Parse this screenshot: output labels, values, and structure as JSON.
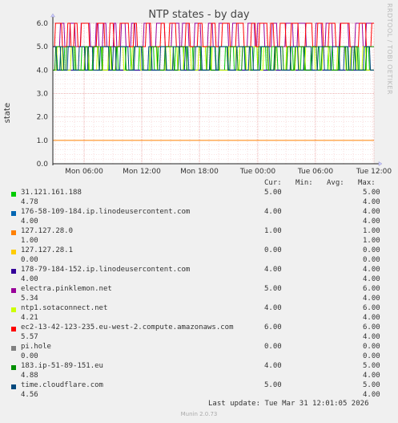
{
  "chart_data": {
    "type": "line",
    "title": "NTP states - by day",
    "ylabel": "state",
    "ylim": [
      0,
      6
    ],
    "y_ticks": [
      "0.0",
      "1.0",
      "2.0",
      "3.0",
      "4.0",
      "5.0",
      "6.0"
    ],
    "x_ticks": [
      "Mon 06:00",
      "Mon 12:00",
      "Mon 18:00",
      "Tue 00:00",
      "Tue 06:00",
      "Tue 12:00"
    ],
    "grid": true,
    "legend_columns": [
      "Cur:",
      "Min:",
      "Avg:",
      "Max:"
    ],
    "series": [
      {
        "name": "31.121.161.188",
        "color": "#00cc00",
        "cur": "5.00",
        "min": "4.00",
        "avg": "4.78",
        "max": "5.00",
        "base": 4,
        "top": 5
      },
      {
        "name": "176-58-109-184.ip.linodeusercontent.com",
        "color": "#0066b3",
        "cur": "4.00",
        "min": "4.00",
        "avg": "4.00",
        "max": "4.00",
        "base": 4,
        "top": 4
      },
      {
        "name": "127.127.28.0",
        "color": "#ff8000",
        "cur": "1.00",
        "min": "1.00",
        "avg": "1.00",
        "max": "1.00",
        "base": 1,
        "top": 1
      },
      {
        "name": "127.127.28.1",
        "color": "#ffcc00",
        "cur": "0.00",
        "min": "0.00",
        "avg": "0.00",
        "max": "0.00",
        "base": 0,
        "top": 0
      },
      {
        "name": "178-79-184-152.ip.linodeusercontent.com",
        "color": "#330099",
        "cur": "4.00",
        "min": "4.00",
        "avg": "4.00",
        "max": "4.00",
        "base": 4,
        "top": 4
      },
      {
        "name": "electra.pinklemon.net",
        "color": "#990099",
        "cur": "5.00",
        "min": "4.00",
        "avg": "5.34",
        "max": "6.00",
        "base": 5,
        "top": 6
      },
      {
        "name": "ntp1.sotaconnect.net",
        "color": "#ccff00",
        "cur": "4.00",
        "min": "4.00",
        "avg": "4.21",
        "max": "6.00",
        "base": 4,
        "top": 5
      },
      {
        "name": "ec2-13-42-123-235.eu-west-2.compute.amazonaws.com",
        "color": "#ff0000",
        "cur": "6.00",
        "min": "4.00",
        "avg": "5.57",
        "max": "6.00",
        "base": 5,
        "top": 6
      },
      {
        "name": "pi.hole",
        "color": "#808080",
        "cur": "0.00",
        "min": "0.00",
        "avg": "0.00",
        "max": "0.00",
        "base": 0,
        "top": 0
      },
      {
        "name": "183.ip-51-89-151.eu",
        "color": "#008f00",
        "cur": "4.00",
        "min": "4.00",
        "avg": "4.88",
        "max": "5.00",
        "base": 4,
        "top": 5
      },
      {
        "name": "time.cloudflare.com",
        "color": "#00487d",
        "cur": "5.00",
        "min": "4.00",
        "avg": "4.56",
        "max": "5.00",
        "base": 4,
        "top": 5
      }
    ]
  },
  "rrd_label": "RRDTOOL / TOBI OETIKER",
  "footer": {
    "last_update": "Last update: Tue Mar 31 12:01:05 2026",
    "version": "Munin 2.0.73"
  }
}
